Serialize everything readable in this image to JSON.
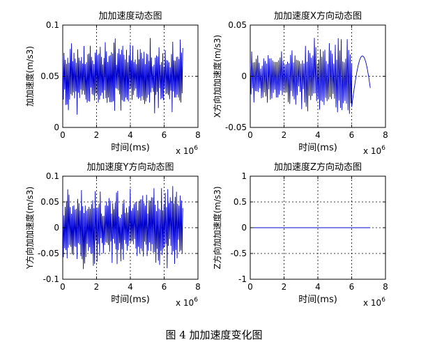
{
  "figure": {
    "caption": "图 4  加加速度变化图"
  },
  "colors": {
    "line": "#0000cc",
    "axis": "#000000",
    "grid": "#000000",
    "background": "#ffffff"
  },
  "chart_data": [
    {
      "type": "line",
      "title": "加加速度动态图",
      "xlabel": "时间(ms)",
      "ylabel": "加加速度(m/s3)",
      "x_exponent_label": "x 10",
      "x_exponent": "6",
      "xlim": [
        0,
        8
      ],
      "ylim": [
        0,
        0.1
      ],
      "xticks": [
        0,
        2,
        4,
        6,
        8
      ],
      "yticks": [
        0,
        0.05,
        0.1
      ],
      "ytick_labels": [
        "0",
        "0.05",
        "0.1"
      ],
      "grid": true,
      "signal": {
        "x_end": 7.1,
        "bursts": 48,
        "center": 0.05,
        "amp_min": 0.015,
        "amp_max": 0.038,
        "tail": "oscillation"
      }
    },
    {
      "type": "line",
      "title": "加加速度X方向动态图",
      "xlabel": "时间(ms)",
      "ylabel": "X方向加加速度(m/s3)",
      "x_exponent_label": "x 10",
      "x_exponent": "6",
      "xlim": [
        0,
        8
      ],
      "ylim": [
        -0.05,
        0.05
      ],
      "xticks": [
        0,
        2,
        4,
        6,
        8
      ],
      "yticks": [
        -0.05,
        0,
        0.05
      ],
      "ytick_labels": [
        "-0.05",
        "0",
        "0.05"
      ],
      "grid": true,
      "signal": {
        "x_end": 7.1,
        "bursts": 34,
        "center": 0.0,
        "amp_min": 0.02,
        "amp_max": 0.045,
        "tail": "arc",
        "tail_start": 6.0,
        "tail_peak": 0.027
      }
    },
    {
      "type": "line",
      "title": "加加速度Y方向动态图",
      "xlabel": "时间(ms)",
      "ylabel": "Y方向加加速度(m/s3)",
      "x_exponent_label": "x 10",
      "x_exponent": "6",
      "xlim": [
        0,
        8
      ],
      "ylim": [
        -0.1,
        0.1
      ],
      "xticks": [
        0,
        2,
        4,
        6,
        8
      ],
      "yticks": [
        -0.1,
        -0.05,
        0,
        0.05,
        0.1
      ],
      "ytick_labels": [
        "-0.1",
        "-0.05",
        "0",
        "0.05",
        "0.1"
      ],
      "grid": true,
      "signal": {
        "x_end": 7.1,
        "bursts": 48,
        "center": 0.0,
        "amp_min": 0.03,
        "amp_max": 0.085,
        "tail": "oscillation"
      }
    },
    {
      "type": "line",
      "title": "加加速度Z方向动态图",
      "xlabel": "时间(ms)",
      "ylabel": "Z方向加加速度(m/s3)",
      "x_exponent_label": "x 10",
      "x_exponent": "6",
      "xlim": [
        0,
        8
      ],
      "ylim": [
        -1,
        1
      ],
      "xticks": [
        0,
        2,
        4,
        6,
        8
      ],
      "yticks": [
        -1,
        -0.5,
        0,
        0.5,
        1
      ],
      "ytick_labels": [
        "-1",
        "-0.5",
        "0",
        "0.5",
        "1"
      ],
      "grid": true,
      "signal": {
        "x_end": 7.1,
        "bursts": 0,
        "center": 0.0,
        "amp_min": 0,
        "amp_max": 0,
        "tail": "flat"
      }
    }
  ]
}
